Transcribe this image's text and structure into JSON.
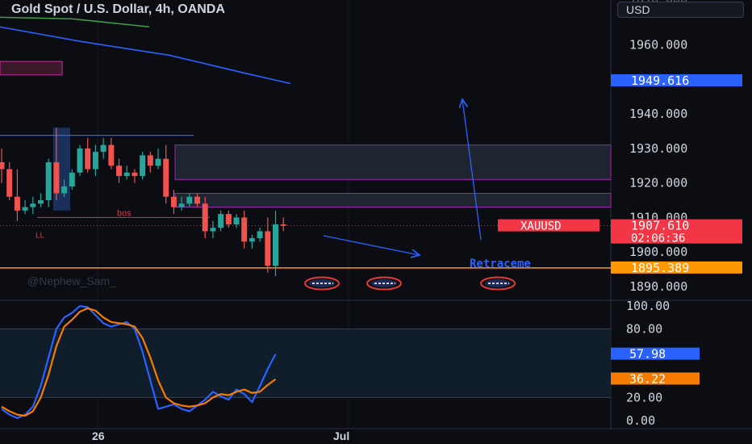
{
  "header": {
    "title": "Gold Spot / U.S. Dollar, 4h, OANDA",
    "currency": "USD"
  },
  "watermark": "@Nephew_Sam_",
  "colors": {
    "background": "#0b0d12",
    "up": "#26a69a",
    "down": "#ef5350",
    "blue": "#2962ff",
    "orange": "#f57c00",
    "zone_border": "#9c27b0",
    "retrace_line": "#ff9800",
    "axis_text": "#d1d4dc"
  },
  "chart_data": [
    {
      "type": "candlestick",
      "symbol": "XAUUSD",
      "interval": "4h",
      "ylim": [
        1886,
        1973
      ],
      "yticks": [
        "1960.000",
        "1950.000",
        "1940.000",
        "1930.000",
        "1920.000",
        "1910.000",
        "1900.000",
        "1890.000"
      ],
      "xticks": [
        "26",
        "Jul"
      ],
      "price_badges": [
        {
          "label": "",
          "value": "1949.616",
          "color": "#2962ff"
        },
        {
          "label": "XAUUSD",
          "value": "1907.610",
          "sub": "02:06:36",
          "color": "#f23645"
        },
        {
          "label": "",
          "value": "1895.389",
          "color": "#ff9800"
        }
      ],
      "candles": [
        {
          "o": 1926,
          "h": 1930,
          "l": 1920,
          "c": 1924
        },
        {
          "o": 1924,
          "h": 1926,
          "l": 1915,
          "c": 1916
        },
        {
          "o": 1916,
          "h": 1924,
          "l": 1909,
          "c": 1912
        },
        {
          "o": 1912,
          "h": 1915,
          "l": 1911,
          "c": 1913
        },
        {
          "o": 1913,
          "h": 1916,
          "l": 1911,
          "c": 1914
        },
        {
          "o": 1914,
          "h": 1917,
          "l": 1913,
          "c": 1915
        },
        {
          "o": 1915,
          "h": 1927,
          "l": 1913,
          "c": 1926
        },
        {
          "o": 1926,
          "h": 1936,
          "l": 1915,
          "c": 1917
        },
        {
          "o": 1917,
          "h": 1921,
          "l": 1916,
          "c": 1919
        },
        {
          "o": 1919,
          "h": 1924,
          "l": 1918,
          "c": 1923
        },
        {
          "o": 1923,
          "h": 1931,
          "l": 1922,
          "c": 1930
        },
        {
          "o": 1930,
          "h": 1933,
          "l": 1923,
          "c": 1924
        },
        {
          "o": 1924,
          "h": 1931,
          "l": 1922,
          "c": 1929
        },
        {
          "o": 1929,
          "h": 1933,
          "l": 1927,
          "c": 1931
        },
        {
          "o": 1931,
          "h": 1933,
          "l": 1924,
          "c": 1925
        },
        {
          "o": 1925,
          "h": 1927,
          "l": 1920,
          "c": 1922
        },
        {
          "o": 1922,
          "h": 1925,
          "l": 1921,
          "c": 1923
        },
        {
          "o": 1923,
          "h": 1924,
          "l": 1920,
          "c": 1922
        },
        {
          "o": 1922,
          "h": 1929,
          "l": 1921,
          "c": 1928
        },
        {
          "o": 1928,
          "h": 1929,
          "l": 1923,
          "c": 1925
        },
        {
          "o": 1925,
          "h": 1930,
          "l": 1924,
          "c": 1927
        },
        {
          "o": 1927,
          "h": 1931,
          "l": 1914,
          "c": 1916
        },
        {
          "o": 1916,
          "h": 1918,
          "l": 1911,
          "c": 1913
        },
        {
          "o": 1913,
          "h": 1916,
          "l": 1912,
          "c": 1914
        },
        {
          "o": 1914,
          "h": 1917,
          "l": 1913,
          "c": 1916
        },
        {
          "o": 1916,
          "h": 1917,
          "l": 1913,
          "c": 1914
        },
        {
          "o": 1914,
          "h": 1916,
          "l": 1904,
          "c": 1906
        },
        {
          "o": 1906,
          "h": 1909,
          "l": 1904,
          "c": 1907
        },
        {
          "o": 1907,
          "h": 1912,
          "l": 1906,
          "c": 1911
        },
        {
          "o": 1911,
          "h": 1912,
          "l": 1907,
          "c": 1908
        },
        {
          "o": 1908,
          "h": 1911,
          "l": 1907,
          "c": 1910
        },
        {
          "o": 1910,
          "h": 1912,
          "l": 1901,
          "c": 1903
        },
        {
          "o": 1903,
          "h": 1905,
          "l": 1901,
          "c": 1904
        },
        {
          "o": 1904,
          "h": 1907,
          "l": 1903,
          "c": 1906
        },
        {
          "o": 1906,
          "h": 1910,
          "l": 1894,
          "c": 1896
        },
        {
          "o": 1896,
          "h": 1912,
          "l": 1893,
          "c": 1908
        },
        {
          "o": 1908,
          "h": 1910,
          "l": 1906,
          "c": 1907.6
        }
      ],
      "zones": [
        {
          "y1": 1931,
          "y2": 1921
        },
        {
          "y1": 1917,
          "y2": 1913
        }
      ],
      "labels": {
        "bos": "bos",
        "ll": "LL",
        "retrace": "Retraceme"
      }
    },
    {
      "type": "line",
      "name": "stochastic oscillator",
      "ylim": [
        -3,
        105
      ],
      "yticks": [
        "100.00",
        "80.00",
        "20.00",
        "0.00"
      ],
      "badges": [
        {
          "value": "57.98",
          "color": "#2962ff"
        },
        {
          "value": "36.22",
          "color": "#f57c00"
        }
      ],
      "series": [
        {
          "color": "#2962ff",
          "values": [
            10,
            5,
            2,
            5,
            12,
            30,
            55,
            80,
            90,
            94,
            100,
            99,
            92,
            85,
            82,
            84,
            86,
            80,
            60,
            35,
            10,
            12,
            14,
            10,
            8,
            13,
            18,
            25,
            21,
            18,
            27,
            23,
            16,
            30,
            45,
            58
          ]
        },
        {
          "color": "#f57c00",
          "values": [
            12,
            8,
            5,
            4,
            8,
            20,
            40,
            65,
            82,
            88,
            95,
            98,
            96,
            90,
            86,
            85,
            84,
            82,
            72,
            55,
            35,
            20,
            15,
            13,
            12,
            13,
            15,
            20,
            23,
            22,
            25,
            27,
            24,
            25,
            31,
            36
          ]
        }
      ]
    }
  ]
}
